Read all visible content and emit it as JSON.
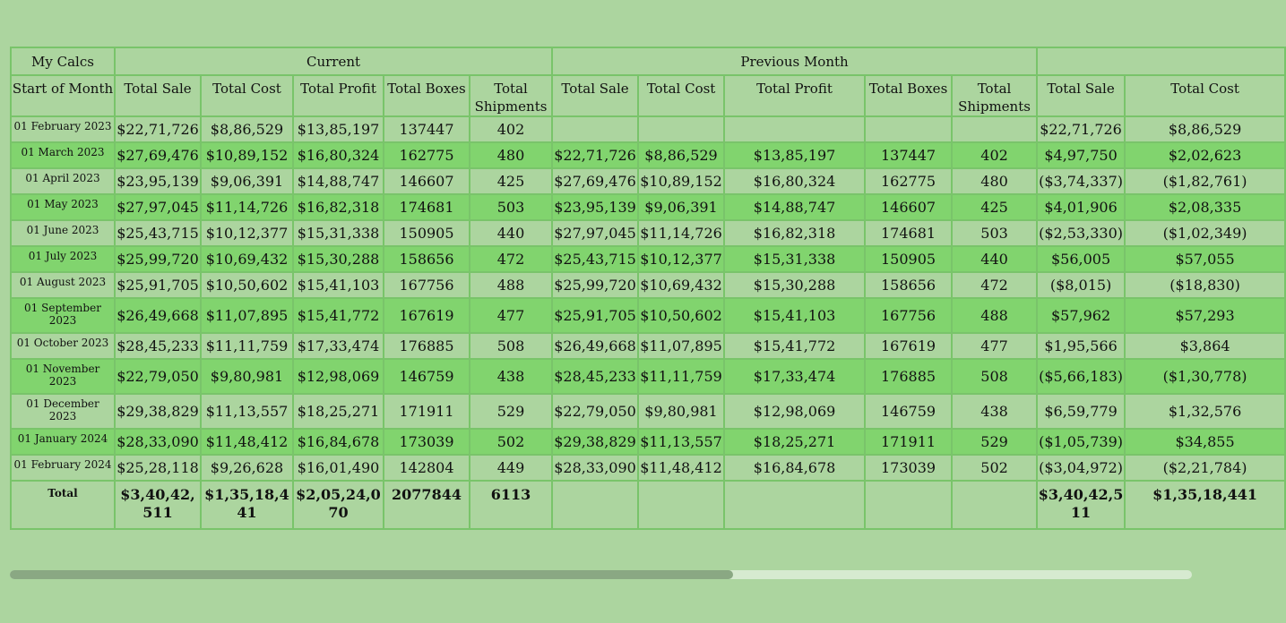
{
  "table": {
    "group_headers": {
      "my_calcs": "My Calcs",
      "current": "Current",
      "previous_month": "Previous Month",
      "difference": ""
    },
    "column_headers": [
      "Start of Month",
      "Total Sale",
      "Total Cost",
      "Total Profit",
      "Total Boxes",
      "Total Shipments",
      "Total Sale",
      "Total Cost",
      "Total Profit",
      "Total Boxes",
      "Total Shipments",
      "Total Sale",
      "Total Cost"
    ],
    "rows": [
      {
        "date": "01 February 2023",
        "cur": [
          "$22,71,726",
          "$8,86,529",
          "$13,85,197",
          "137447",
          "402"
        ],
        "prev": [
          "",
          "",
          "",
          "",
          ""
        ],
        "diff": [
          "$22,71,726",
          "$8,86,529"
        ]
      },
      {
        "date": "01 March 2023",
        "cur": [
          "$27,69,476",
          "$10,89,152",
          "$16,80,324",
          "162775",
          "480"
        ],
        "prev": [
          "$22,71,726",
          "$8,86,529",
          "$13,85,197",
          "137447",
          "402"
        ],
        "diff": [
          "$4,97,750",
          "$2,02,623"
        ]
      },
      {
        "date": "01 April 2023",
        "cur": [
          "$23,95,139",
          "$9,06,391",
          "$14,88,747",
          "146607",
          "425"
        ],
        "prev": [
          "$27,69,476",
          "$10,89,152",
          "$16,80,324",
          "162775",
          "480"
        ],
        "diff": [
          "($3,74,337)",
          "($1,82,761)"
        ]
      },
      {
        "date": "01 May 2023",
        "cur": [
          "$27,97,045",
          "$11,14,726",
          "$16,82,318",
          "174681",
          "503"
        ],
        "prev": [
          "$23,95,139",
          "$9,06,391",
          "$14,88,747",
          "146607",
          "425"
        ],
        "diff": [
          "$4,01,906",
          "$2,08,335"
        ]
      },
      {
        "date": "01 June 2023",
        "cur": [
          "$25,43,715",
          "$10,12,377",
          "$15,31,338",
          "150905",
          "440"
        ],
        "prev": [
          "$27,97,045",
          "$11,14,726",
          "$16,82,318",
          "174681",
          "503"
        ],
        "diff": [
          "($2,53,330)",
          "($1,02,349)"
        ]
      },
      {
        "date": "01 July 2023",
        "cur": [
          "$25,99,720",
          "$10,69,432",
          "$15,30,288",
          "158656",
          "472"
        ],
        "prev": [
          "$25,43,715",
          "$10,12,377",
          "$15,31,338",
          "150905",
          "440"
        ],
        "diff": [
          "$56,005",
          "$57,055"
        ]
      },
      {
        "date": "01 August 2023",
        "cur": [
          "$25,91,705",
          "$10,50,602",
          "$15,41,103",
          "167756",
          "488"
        ],
        "prev": [
          "$25,99,720",
          "$10,69,432",
          "$15,30,288",
          "158656",
          "472"
        ],
        "diff": [
          "($8,015)",
          "($18,830)"
        ]
      },
      {
        "date": "01 September 2023",
        "cur": [
          "$26,49,668",
          "$11,07,895",
          "$15,41,772",
          "167619",
          "477"
        ],
        "prev": [
          "$25,91,705",
          "$10,50,602",
          "$15,41,103",
          "167756",
          "488"
        ],
        "diff": [
          "$57,962",
          "$57,293"
        ]
      },
      {
        "date": "01 October 2023",
        "cur": [
          "$28,45,233",
          "$11,11,759",
          "$17,33,474",
          "176885",
          "508"
        ],
        "prev": [
          "$26,49,668",
          "$11,07,895",
          "$15,41,772",
          "167619",
          "477"
        ],
        "diff": [
          "$1,95,566",
          "$3,864"
        ]
      },
      {
        "date": "01 November 2023",
        "cur": [
          "$22,79,050",
          "$9,80,981",
          "$12,98,069",
          "146759",
          "438"
        ],
        "prev": [
          "$28,45,233",
          "$11,11,759",
          "$17,33,474",
          "176885",
          "508"
        ],
        "diff": [
          "($5,66,183)",
          "($1,30,778)"
        ]
      },
      {
        "date": "01 December 2023",
        "cur": [
          "$29,38,829",
          "$11,13,557",
          "$18,25,271",
          "171911",
          "529"
        ],
        "prev": [
          "$22,79,050",
          "$9,80,981",
          "$12,98,069",
          "146759",
          "438"
        ],
        "diff": [
          "$6,59,779",
          "$1,32,576"
        ]
      },
      {
        "date": "01 January 2024",
        "cur": [
          "$28,33,090",
          "$11,48,412",
          "$16,84,678",
          "173039",
          "502"
        ],
        "prev": [
          "$29,38,829",
          "$11,13,557",
          "$18,25,271",
          "171911",
          "529"
        ],
        "diff": [
          "($1,05,739)",
          "$34,855"
        ]
      },
      {
        "date": "01 February 2024",
        "cur": [
          "$25,28,118",
          "$9,26,628",
          "$16,01,490",
          "142804",
          "449"
        ],
        "prev": [
          "$28,33,090",
          "$11,48,412",
          "$16,84,678",
          "173039",
          "502"
        ],
        "diff": [
          "($3,04,972)",
          "($2,21,784)"
        ]
      }
    ],
    "total": {
      "label": "Total",
      "cur": [
        "$3,40,42,511",
        "$1,35,18,441",
        "$2,05,24,070",
        "2077844",
        "6113"
      ],
      "prev": [
        "",
        "",
        "",
        "",
        ""
      ],
      "diff": [
        "$3,40,42,511",
        "$1,35,18,441"
      ]
    }
  },
  "scrollbar": {
    "position_fraction": 0.61
  },
  "colors": {
    "background": "#acd59f",
    "row_highlight": "#81d46e",
    "border": "#79c46a",
    "scroll_thumb": "#8aa883",
    "scroll_track": "#d6ead0"
  }
}
